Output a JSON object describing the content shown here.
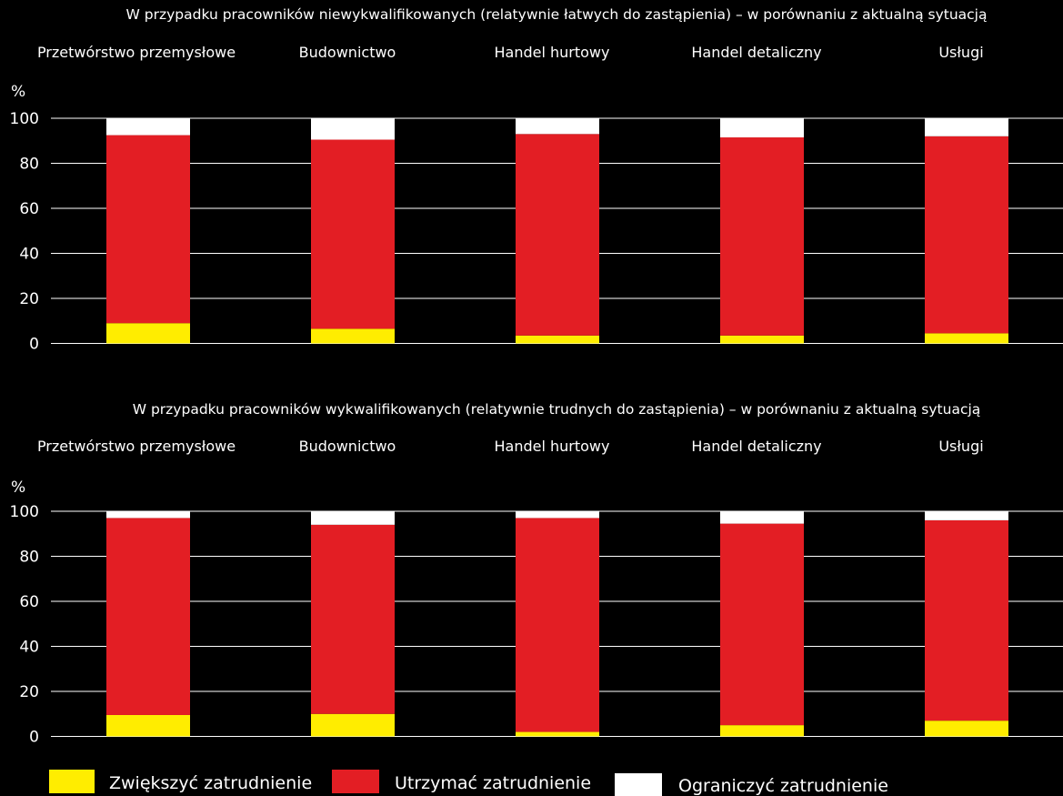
{
  "colors": {
    "background": "#000000",
    "increase": "#ffed00",
    "maintain": "#e31e24",
    "reduce": "#ffffff",
    "text": "#ffffff"
  },
  "legend": [
    {
      "key": "increase",
      "label": "Zwiększyć zatrudnienie"
    },
    {
      "key": "maintain",
      "label": "Utrzymać zatrudnienie"
    },
    {
      "key": "reduce",
      "label": "Ograniczyć zatrudnienie"
    }
  ],
  "chart_data": [
    {
      "type": "bar",
      "stacked": true,
      "title": "W przypadku pracowników niewykwalifikowanych (relatywnie łatwych do zastąpienia) – w porównaniu z aktualną sytuacją",
      "ylabel": "%",
      "ylim": [
        0,
        100
      ],
      "yticks": [
        0,
        20,
        40,
        60,
        80,
        100
      ],
      "grid": true,
      "legend_position": "bottom",
      "categories": [
        "Przetwórstwo przemysłowe",
        "Budownictwo",
        "Handel hurtowy",
        "Handel detaliczny",
        "Usługi"
      ],
      "series": [
        {
          "name": "Zwiększyć zatrudnienie",
          "key": "increase",
          "values": [
            9,
            6.5,
            3.5,
            3.5,
            4.5
          ]
        },
        {
          "name": "Utrzymać zatrudnienie",
          "key": "maintain",
          "values": [
            83.5,
            84,
            89.5,
            88,
            87.5
          ]
        },
        {
          "name": "Ograniczyć zatrudnienie",
          "key": "reduce",
          "values": [
            7.5,
            9.5,
            7,
            8.5,
            8
          ]
        }
      ]
    },
    {
      "type": "bar",
      "stacked": true,
      "title": "W przypadku pracowników wykwalifikowanych (relatywnie trudnych do zastąpienia) – w porównaniu z aktualną sytuacją",
      "ylabel": "%",
      "ylim": [
        0,
        100
      ],
      "yticks": [
        0,
        20,
        40,
        60,
        80,
        100
      ],
      "grid": true,
      "legend_position": "bottom",
      "categories": [
        "Przetwórstwo przemysłowe",
        "Budownictwo",
        "Handel hurtowy",
        "Handel detaliczny",
        "Usługi"
      ],
      "series": [
        {
          "name": "Zwiększyć zatrudnienie",
          "key": "increase",
          "values": [
            9.5,
            10,
            2,
            5,
            7
          ]
        },
        {
          "name": "Utrzymać zatrudnienie",
          "key": "maintain",
          "values": [
            87.5,
            84,
            95,
            89.5,
            89
          ]
        },
        {
          "name": "Ograniczyć zatrudnienie",
          "key": "reduce",
          "values": [
            3,
            6,
            3,
            5.5,
            4
          ]
        }
      ]
    }
  ]
}
